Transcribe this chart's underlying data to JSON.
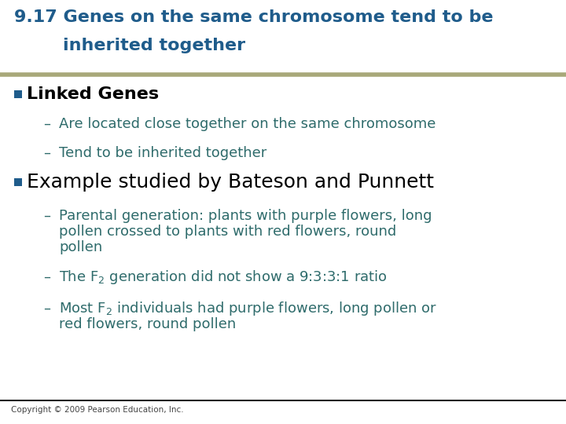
{
  "title_line1": "9.17 Genes on the same chromosome tend to be",
  "title_line2": "        inherited together",
  "title_color": "#1F5C8B",
  "background_color": "#FFFFFF",
  "separator_top_color": "#A8A87A",
  "separator_bot_color": "#222222",
  "bullet_color": "#1F5C8B",
  "sub_text_color": "#2E6B6B",
  "bullet1_text": "Linked Genes",
  "sub1_1": "Are located close together on the same chromosome",
  "sub1_2": "Tend to be inherited together",
  "bullet2_text": "Example studied by Bateson and Punnett",
  "sub2_1a": "Parental generation: plants with purple flowers, long",
  "sub2_1b": "pollen crossed to plants with red flowers, round",
  "sub2_1c": "pollen",
  "sub2_2": " generation did not show a 9:3:3:1 ratio",
  "sub2_3": " individuals had purple flowers, long pollen or",
  "sub2_3b": "red flowers, round pollen",
  "copyright": "Copyright © 2009 Pearson Education, Inc.",
  "title_fontsize": 16,
  "bullet1_fontsize": 16,
  "bullet2_fontsize": 18,
  "sub_fontsize": 13,
  "copyright_fontsize": 7.5
}
